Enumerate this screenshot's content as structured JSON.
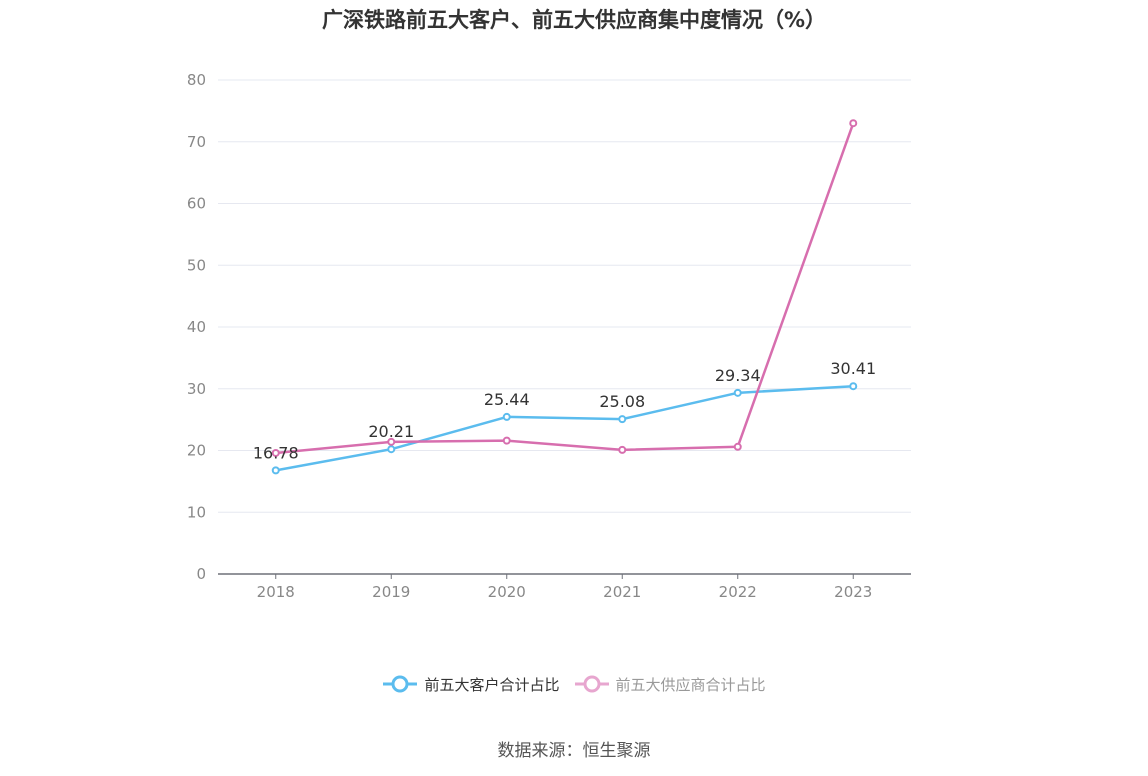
{
  "title": "广深铁路前五大客户、前五大供应商集中度情况（%）",
  "source": "数据来源：恒生聚源",
  "colors": {
    "customer": "#5bbcee",
    "supplier": "#d76eae",
    "supplier_legend": "#e7a6cf",
    "grid": "#e6e8f0",
    "axis": "#6e7079",
    "tick": "#888888",
    "label": "#333333"
  },
  "chart_data": {
    "type": "line",
    "title": "广深铁路前五大客户、前五大供应商集中度情况（%）",
    "categories": [
      "2018",
      "2019",
      "2020",
      "2021",
      "2022",
      "2023"
    ],
    "ylim": [
      0,
      80
    ],
    "yticks": [
      "0",
      "10",
      "20",
      "30",
      "40",
      "50",
      "60",
      "70",
      "80"
    ],
    "grid": true,
    "legend_position": "bottom",
    "series": [
      {
        "name": "前五大客户合计占比",
        "values": [
          16.78,
          20.21,
          25.44,
          25.08,
          29.34,
          30.41
        ],
        "labels": [
          "16.78",
          "20.21",
          "25.44",
          "25.08",
          "29.34",
          "30.41"
        ],
        "active": true
      },
      {
        "name": "前五大供应商合计占比",
        "values": [
          19.6,
          21.4,
          21.6,
          20.1,
          20.6,
          73.0
        ],
        "active": false
      }
    ]
  }
}
